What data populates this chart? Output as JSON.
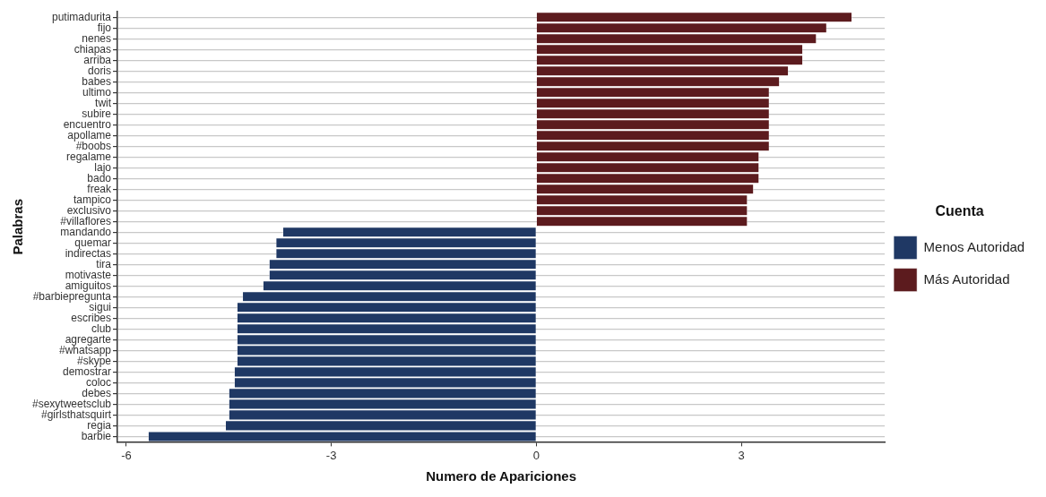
{
  "chart_data": {
    "type": "bar",
    "orientation": "horizontal",
    "xlabel": "Numero de Apariciones",
    "ylabel": "Palabras",
    "legend_title": "Cuenta",
    "legend": "right",
    "grid": "y",
    "categories": [
      "putimadurita",
      "fijo",
      "nenes",
      "chiapas",
      "arriba",
      "doris",
      "babes",
      "ultimo",
      "twit",
      "subire",
      "encuentro",
      "apollame",
      "#boobs",
      "regalame",
      "lajo",
      "bado",
      "freak",
      "tampico",
      "exclusivo",
      "#villaflores",
      "mandando",
      "quemar",
      "indirectas",
      "tira",
      "motivaste",
      "amiguitos",
      "#barbiepregunta",
      "sigui",
      "escribes",
      "club",
      "agregarte",
      "#whatsapp",
      "#skype",
      "demostrar",
      "coloc",
      "debes",
      "#sexytweetsclub",
      "#girlsthatsquirt",
      "regia",
      "barbie"
    ],
    "xlim": [
      -6.13,
      5.1
    ],
    "xticks": [
      -6,
      -3,
      0,
      3
    ],
    "series": [
      {
        "name": "Menos Autoridad",
        "color": "#1f3864",
        "values": [
          null,
          null,
          null,
          null,
          null,
          null,
          null,
          null,
          null,
          null,
          null,
          null,
          null,
          null,
          null,
          null,
          null,
          null,
          null,
          null,
          -3.71,
          -3.81,
          -3.81,
          -3.91,
          -3.91,
          -4.0,
          -4.3,
          -4.38,
          -4.38,
          -4.38,
          -4.38,
          -4.38,
          -4.38,
          -4.42,
          -4.42,
          -4.5,
          -4.5,
          -4.5,
          -4.55,
          -5.68
        ]
      },
      {
        "name": "Más Autoridad",
        "color": "#5c1b1e",
        "values": [
          4.62,
          4.25,
          4.1,
          3.9,
          3.9,
          3.69,
          3.56,
          3.41,
          3.41,
          3.41,
          3.41,
          3.41,
          3.41,
          3.26,
          3.26,
          3.26,
          3.18,
          3.09,
          3.09,
          3.09,
          null,
          null,
          null,
          null,
          null,
          null,
          null,
          null,
          null,
          null,
          null,
          null,
          null,
          null,
          null,
          null,
          null,
          null,
          null,
          null
        ]
      }
    ]
  }
}
